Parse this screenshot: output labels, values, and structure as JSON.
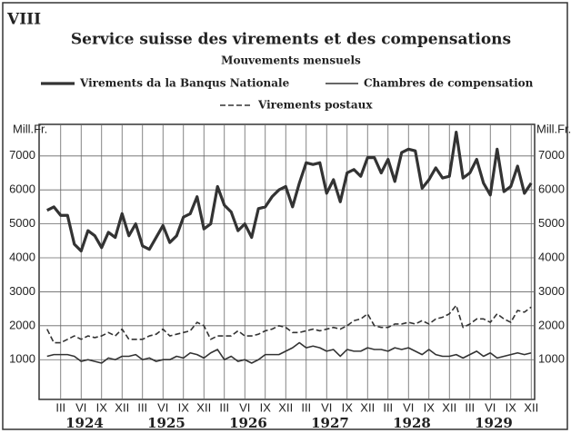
{
  "chart_data": {
    "type": "line",
    "panel": "VIII",
    "title": "Service suisse des virements et des compensations",
    "subtitle": "Mouvements mensuels",
    "y_label": "Mill.Fr.",
    "categories": [
      null,
      null,
      "III",
      null,
      null,
      "VI",
      null,
      null,
      "IX",
      null,
      null,
      "XII",
      null,
      null,
      "III",
      null,
      null,
      "VI",
      null,
      null,
      "IX",
      null,
      null,
      "XII",
      null,
      null,
      "III",
      null,
      null,
      "VI",
      null,
      null,
      "IX",
      null,
      null,
      "XII",
      null,
      null,
      "III",
      null,
      null,
      "VI",
      null,
      null,
      "IX",
      null,
      null,
      "XII",
      null,
      null,
      "III",
      null,
      null,
      "VI",
      null,
      null,
      "IX",
      null,
      null,
      "XII",
      null,
      null,
      "III",
      null,
      null,
      "VI",
      null,
      null,
      "IX",
      null,
      null,
      "XII"
    ],
    "years": [
      "1924",
      "1925",
      "1926",
      "1927",
      "1928",
      "1929"
    ],
    "ylim": [
      -170,
      7930
    ],
    "yticks": [
      1000,
      2000,
      3000,
      4000,
      5000,
      6000,
      7000
    ],
    "grid": true,
    "series": [
      {
        "name": "Virements da la Banqus Nationale",
        "color": "#333333",
        "weight": "bold",
        "style": "solid",
        "values": [
          5400,
          5500,
          5250,
          5250,
          4400,
          4200,
          4800,
          4650,
          4300,
          4750,
          4600,
          5300,
          4650,
          5000,
          4350,
          4250,
          4600,
          4950,
          4450,
          4650,
          5200,
          5300,
          5800,
          4850,
          5000,
          6100,
          5550,
          5350,
          4800,
          5000,
          4600,
          5450,
          5500,
          5800,
          6000,
          6100,
          5500,
          6200,
          6800,
          6750,
          6800,
          5900,
          6300,
          5650,
          6500,
          6600,
          6400,
          6950,
          6950,
          6500,
          6900,
          6250,
          7100,
          7200,
          7150,
          6050,
          6300,
          6650,
          6350,
          6400,
          7700,
          6350,
          6500,
          6900,
          6200,
          5850,
          7200,
          5950,
          6100,
          6700,
          5900,
          6200
        ]
      },
      {
        "name": "Chambres de compensation",
        "color": "#333333",
        "weight": "normal",
        "style": "solid",
        "values": [
          1100,
          1150,
          1150,
          1150,
          1100,
          950,
          1000,
          950,
          900,
          1050,
          1000,
          1100,
          1100,
          1150,
          1000,
          1050,
          950,
          1000,
          1000,
          1100,
          1050,
          1200,
          1150,
          1050,
          1200,
          1300,
          1000,
          1100,
          950,
          1000,
          900,
          1000,
          1150,
          1150,
          1150,
          1250,
          1350,
          1500,
          1350,
          1400,
          1350,
          1250,
          1300,
          1100,
          1300,
          1250,
          1250,
          1350,
          1300,
          1300,
          1250,
          1350,
          1300,
          1350,
          1250,
          1150,
          1300,
          1150,
          1100,
          1100,
          1150,
          1050,
          1150,
          1250,
          1100,
          1200,
          1050,
          1100,
          1150,
          1200,
          1150,
          1200
        ]
      },
      {
        "name": "Virements postaux",
        "color": "#333333",
        "weight": "normal",
        "style": "dashed",
        "values": [
          1900,
          1500,
          1500,
          1600,
          1700,
          1600,
          1700,
          1650,
          1700,
          1800,
          1700,
          1900,
          1600,
          1600,
          1600,
          1700,
          1750,
          1900,
          1700,
          1750,
          1800,
          1850,
          2100,
          2000,
          1600,
          1700,
          1700,
          1700,
          1850,
          1700,
          1700,
          1750,
          1850,
          1900,
          2000,
          1950,
          1800,
          1800,
          1850,
          1900,
          1850,
          1900,
          1950,
          1900,
          2000,
          2150,
          2200,
          2350,
          2000,
          1950,
          1950,
          2050,
          2050,
          2100,
          2050,
          2150,
          2050,
          2200,
          2250,
          2350,
          2600,
          1950,
          2050,
          2200,
          2200,
          2100,
          2350,
          2200,
          2100,
          2450,
          2400,
          2550
        ]
      }
    ]
  }
}
